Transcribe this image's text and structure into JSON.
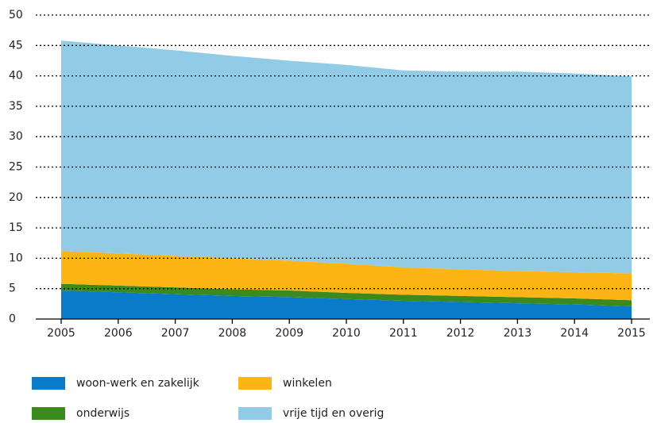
{
  "chart_data": {
    "type": "stacked_area",
    "categories": [
      "2005",
      "2006",
      "2007",
      "2008",
      "2009",
      "2010",
      "2011",
      "2012",
      "2013",
      "2014",
      "2015"
    ],
    "series": [
      {
        "name": "woon-werk en zakelijk",
        "color": "#0a7bc9",
        "values": [
          4.7,
          4.4,
          4.1,
          3.8,
          3.6,
          3.3,
          3.0,
          2.8,
          2.6,
          2.4,
          2.1
        ]
      },
      {
        "name": "onderwijs",
        "color": "#3a8a1e",
        "values": [
          1.1,
          1.1,
          1.1,
          1.1,
          1.1,
          1.0,
          1.0,
          1.0,
          1.0,
          1.0,
          1.0
        ]
      },
      {
        "name": "winkelen",
        "color": "#fdb515",
        "values": [
          5.4,
          5.3,
          5.2,
          5.1,
          4.9,
          4.8,
          4.5,
          4.4,
          4.3,
          4.3,
          4.4
        ]
      },
      {
        "name": "vrije tijd en overig",
        "color": "#92cbe6",
        "values": [
          34.6,
          34.2,
          33.8,
          33.3,
          32.9,
          32.7,
          32.4,
          32.5,
          32.8,
          32.7,
          32.4
        ]
      }
    ],
    "ylim": [
      0,
      50
    ],
    "yticks": [
      0,
      5,
      10,
      15,
      20,
      25,
      30,
      35,
      40,
      45,
      50
    ],
    "grid": true
  }
}
